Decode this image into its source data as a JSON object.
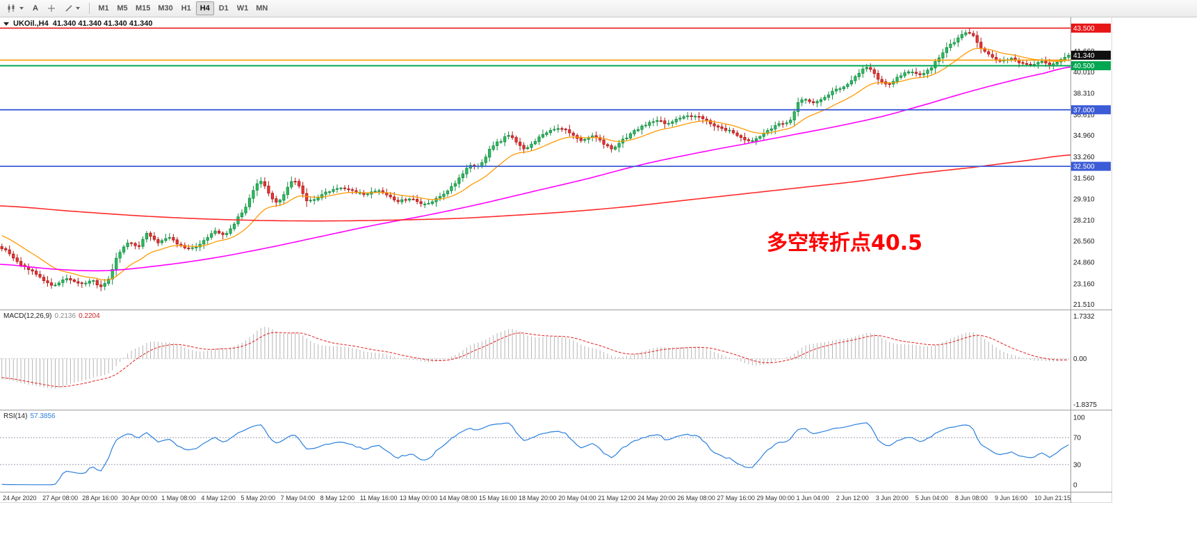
{
  "toolbar": {
    "tools": {
      "annotation_letter": "A"
    },
    "timeframes": [
      {
        "label": "M1",
        "active": false
      },
      {
        "label": "M5",
        "active": false
      },
      {
        "label": "M15",
        "active": false
      },
      {
        "label": "M30",
        "active": false
      },
      {
        "label": "H1",
        "active": false
      },
      {
        "label": "H4",
        "active": true
      },
      {
        "label": "D1",
        "active": false
      },
      {
        "label": "W1",
        "active": false
      },
      {
        "label": "MN",
        "active": false
      }
    ]
  },
  "chart": {
    "title_symbol": "UKOil.,H4",
    "title_ohlc": "41.340 41.340 41.340 41.340",
    "annotation": {
      "text": "多空转折点40.5",
      "color": "#ff0000"
    },
    "axis_values": [
      41.66,
      40.01,
      38.31,
      36.61,
      34.96,
      33.26,
      31.56,
      29.91,
      28.21,
      26.56,
      24.86,
      23.16,
      21.51
    ],
    "hlines": [
      {
        "price": 43.5,
        "color": "#e81717",
        "width": 1.6,
        "badge": "43.500",
        "badge_bg": "#e81717"
      },
      {
        "price": 40.95,
        "color": "#ff9900",
        "width": 1.6,
        "badge": null,
        "badge_bg": null
      },
      {
        "price": 40.5,
        "color": "#00a651",
        "width": 2,
        "badge": "40.500",
        "badge_bg": "#00a651"
      },
      {
        "price": 37.0,
        "color": "#3c5bd7",
        "width": 1.8,
        "badge": "37.000",
        "badge_bg": "#3c5bd7"
      },
      {
        "price": 32.5,
        "color": "#3c5bd7",
        "width": 1.8,
        "badge": "32.500",
        "badge_bg": "#3c5bd7"
      }
    ],
    "current_price": {
      "value": 41.34,
      "badge": "41.340",
      "badge_bg": "#101010"
    },
    "colors": {
      "bull": "#2ebd5f",
      "bull_border": "#128a40",
      "bear": "#e53935",
      "bear_border": "#b01515",
      "ma_orange": "#ff9900",
      "ma_magenta": "#ff00ff",
      "ma_red": "#ff2a2a"
    }
  },
  "macd": {
    "name": "MACD(12,26,9)",
    "value_main": "0.2136",
    "value_signal": "0.2204",
    "scale_max": "1.7332",
    "scale_zero": "0.00",
    "scale_min": "-1.8375",
    "hist_color": "#b4b4b4",
    "signal_color": "#e02020"
  },
  "rsi": {
    "name": "RSI(14)",
    "value": "57.3856",
    "levels": [
      "100",
      "70",
      "30",
      "0"
    ],
    "line_color": "#2a7fde"
  },
  "x_axis": {
    "labels": [
      "24 Apr 2020",
      "27 Apr 08:00",
      "28 Apr 16:00",
      "30 Apr 00:00",
      "1 May 08:00",
      "4 May 12:00",
      "5 May 20:00",
      "7 May 04:00",
      "8 May 12:00",
      "11 May 16:00",
      "13 May 00:00",
      "14 May 08:00",
      "15 May 16:00",
      "18 May 20:00",
      "20 May 04:00",
      "21 May 12:00",
      "24 May 20:00",
      "26 May 08:00",
      "27 May 16:00",
      "29 May 00:00",
      "1 Jun 04:00",
      "2 Jun 12:00",
      "3 Jun 20:00",
      "5 Jun 04:00",
      "8 Jun 08:00",
      "9 Jun 16:00",
      "10 Jun 21:15"
    ]
  },
  "chart_data": {
    "type": "candlestick",
    "symbol": "UKOil",
    "timeframe": "H4",
    "bars": 281,
    "last_close": 41.34,
    "price_range_top": 44.35,
    "price_range_bottom": 21.1,
    "close_path": [
      [
        0,
        26.0
      ],
      [
        4,
        24.9
      ],
      [
        8,
        24.1
      ],
      [
        11,
        23.45
      ],
      [
        14,
        23.05
      ],
      [
        17,
        23.6
      ],
      [
        20,
        23.15
      ],
      [
        24,
        23.35
      ],
      [
        26,
        22.95
      ],
      [
        28,
        23.6
      ],
      [
        30,
        25.2
      ],
      [
        33,
        26.4
      ],
      [
        36,
        26.15
      ],
      [
        38,
        27.1
      ],
      [
        41,
        26.45
      ],
      [
        44,
        26.8
      ],
      [
        47,
        26.15
      ],
      [
        50,
        25.95
      ],
      [
        53,
        26.6
      ],
      [
        56,
        27.3
      ],
      [
        59,
        27.15
      ],
      [
        62,
        28.4
      ],
      [
        64,
        29.3
      ],
      [
        66,
        30.6
      ],
      [
        68,
        31.3
      ],
      [
        70,
        30.3
      ],
      [
        72,
        29.7
      ],
      [
        74,
        30.2
      ],
      [
        76,
        31.3
      ],
      [
        78,
        30.9
      ],
      [
        80,
        29.8
      ],
      [
        82,
        29.9
      ],
      [
        84,
        30.3
      ],
      [
        87,
        30.65
      ],
      [
        90,
        30.8
      ],
      [
        93,
        30.45
      ],
      [
        96,
        30.3
      ],
      [
        99,
        30.6
      ],
      [
        102,
        30.0
      ],
      [
        104,
        29.7
      ],
      [
        107,
        29.95
      ],
      [
        110,
        29.55
      ],
      [
        112,
        29.5
      ],
      [
        114,
        30.0
      ],
      [
        117,
        30.5
      ],
      [
        119,
        31.2
      ],
      [
        121,
        31.9
      ],
      [
        123,
        32.6
      ],
      [
        125,
        32.45
      ],
      [
        127,
        33.3
      ],
      [
        129,
        34.2
      ],
      [
        131,
        34.5
      ],
      [
        133,
        35.0
      ],
      [
        135,
        34.5
      ],
      [
        137,
        33.9
      ],
      [
        139,
        34.3
      ],
      [
        141,
        34.8
      ],
      [
        143,
        35.15
      ],
      [
        146,
        35.5
      ],
      [
        149,
        35.2
      ],
      [
        152,
        34.6
      ],
      [
        155,
        34.9
      ],
      [
        158,
        34.3
      ],
      [
        160,
        33.95
      ],
      [
        163,
        34.6
      ],
      [
        166,
        35.3
      ],
      [
        169,
        35.8
      ],
      [
        172,
        36.1
      ],
      [
        175,
        35.9
      ],
      [
        177,
        36.3
      ],
      [
        180,
        36.45
      ],
      [
        182,
        36.5
      ],
      [
        185,
        36.1
      ],
      [
        188,
        35.6
      ],
      [
        191,
        35.3
      ],
      [
        193,
        35.0
      ],
      [
        196,
        34.55
      ],
      [
        199,
        34.9
      ],
      [
        201,
        35.3
      ],
      [
        204,
        35.9
      ],
      [
        207,
        36.15
      ],
      [
        209,
        37.5
      ],
      [
        211,
        37.8
      ],
      [
        213,
        37.6
      ],
      [
        216,
        38.0
      ],
      [
        219,
        38.6
      ],
      [
        222,
        39.0
      ],
      [
        224,
        39.6
      ],
      [
        227,
        40.3
      ],
      [
        230,
        39.5
      ],
      [
        233,
        39.0
      ],
      [
        235,
        39.6
      ],
      [
        238,
        40.0
      ],
      [
        241,
        39.8
      ],
      [
        244,
        40.4
      ],
      [
        246,
        41.2
      ],
      [
        248,
        41.9
      ],
      [
        250,
        42.4
      ],
      [
        253,
        43.15
      ],
      [
        255,
        42.9
      ],
      [
        257,
        41.9
      ],
      [
        259,
        41.35
      ],
      [
        262,
        40.9
      ],
      [
        265,
        41.1
      ],
      [
        267,
        40.7
      ],
      [
        270,
        40.55
      ],
      [
        273,
        40.9
      ],
      [
        275,
        40.5
      ],
      [
        277,
        40.8
      ],
      [
        279,
        41.1
      ],
      [
        280,
        41.34
      ]
    ],
    "ma_orange_period": 16,
    "ma_magenta_path": [
      [
        0,
        24.7
      ],
      [
        15,
        24.3
      ],
      [
        28,
        24.2
      ],
      [
        42,
        24.6
      ],
      [
        56,
        25.2
      ],
      [
        70,
        26.0
      ],
      [
        84,
        26.9
      ],
      [
        98,
        27.8
      ],
      [
        112,
        28.6
      ],
      [
        126,
        29.5
      ],
      [
        140,
        30.5
      ],
      [
        154,
        31.5
      ],
      [
        168,
        32.6
      ],
      [
        182,
        33.5
      ],
      [
        196,
        34.3
      ],
      [
        208,
        35.0
      ],
      [
        220,
        35.7
      ],
      [
        232,
        36.5
      ],
      [
        244,
        37.5
      ],
      [
        254,
        38.4
      ],
      [
        264,
        39.2
      ],
      [
        274,
        39.9
      ],
      [
        281,
        40.4
      ]
    ],
    "ma_red_path": [
      [
        0,
        29.35
      ],
      [
        20,
        28.9
      ],
      [
        40,
        28.5
      ],
      [
        60,
        28.25
      ],
      [
        80,
        28.15
      ],
      [
        100,
        28.2
      ],
      [
        120,
        28.35
      ],
      [
        135,
        28.6
      ],
      [
        150,
        28.9
      ],
      [
        165,
        29.3
      ],
      [
        180,
        29.8
      ],
      [
        195,
        30.3
      ],
      [
        210,
        30.8
      ],
      [
        225,
        31.3
      ],
      [
        240,
        31.9
      ],
      [
        255,
        32.4
      ],
      [
        268,
        32.9
      ],
      [
        281,
        33.4
      ]
    ],
    "macd_params": [
      12,
      26,
      9
    ],
    "macd_scale": {
      "max": 1.7332,
      "min": -1.8375
    },
    "rsi_period": 14,
    "rsi_scale": {
      "max": 100,
      "min": 0,
      "levels": [
        70,
        30
      ]
    },
    "prehistory": {
      "bars": 56,
      "from": 30.8,
      "to": 26.0
    }
  }
}
